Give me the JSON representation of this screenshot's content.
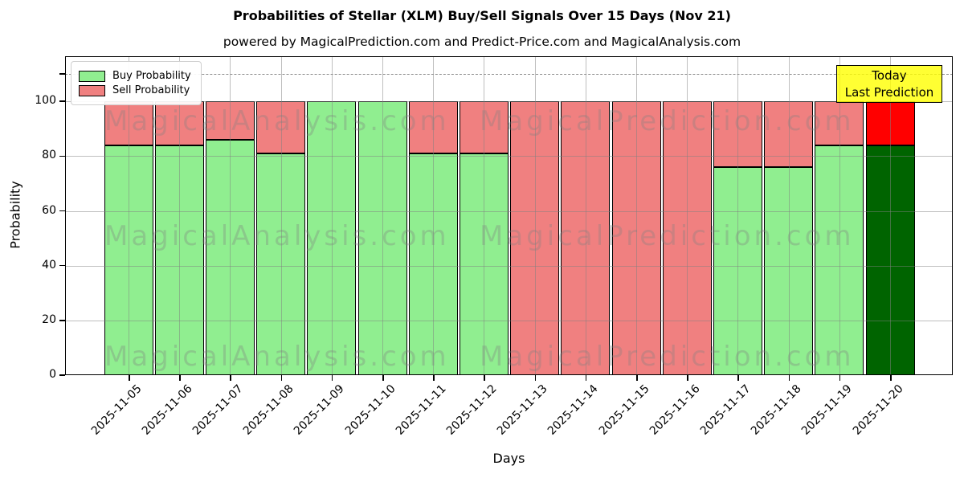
{
  "header": {
    "title": "Probabilities of Stellar (XLM) Buy/Sell Signals Over 15 Days (Nov 21)",
    "subtitle": "powered by MagicalPrediction.com and Predict-Price.com and MagicalAnalysis.com"
  },
  "axes": {
    "xlabel": "Days",
    "ylabel": "Probability"
  },
  "legend": [
    {
      "label": "Buy Probability",
      "color": "#90ee90"
    },
    {
      "label": "Sell Probability",
      "color": "#f08080"
    }
  ],
  "annotation": {
    "line1": "Today",
    "line2": "Last Prediction",
    "bg_color": "#ffff00"
  },
  "watermark": {
    "text_left": "MagicalAnalysis.com",
    "text_right": "MagicalPrediction.com"
  },
  "chart_data": {
    "type": "bar",
    "stacked": true,
    "title": "Probabilities of Stellar (XLM) Buy/Sell Signals Over 15 Days (Nov 21)",
    "xlabel": "Days",
    "ylabel": "Probability",
    "categories": [
      "2025-11-05",
      "2025-11-06",
      "2025-11-07",
      "2025-11-08",
      "2025-11-09",
      "2025-11-10",
      "2025-11-11",
      "2025-11-12",
      "2025-11-13",
      "2025-11-14",
      "2025-11-15",
      "2025-11-16",
      "2025-11-17",
      "2025-11-18",
      "2025-11-19",
      "2025-11-20"
    ],
    "series": [
      {
        "name": "Buy Probability",
        "color": "#90ee90",
        "values": [
          84,
          84,
          86,
          81,
          100,
          100,
          81,
          81,
          0,
          0,
          0,
          0,
          76,
          76,
          84,
          84
        ]
      },
      {
        "name": "Sell Probability",
        "color": "#f08080",
        "values": [
          16,
          16,
          14,
          19,
          0,
          0,
          19,
          19,
          100,
          100,
          100,
          100,
          24,
          24,
          16,
          16
        ]
      }
    ],
    "today_index": 15,
    "today_colors": {
      "buy": "#006400",
      "sell": "#ff0000"
    },
    "bar_edge_color": "#000000",
    "yticks": [
      0,
      20,
      40,
      60,
      80,
      100
    ],
    "extra_unlabeled_ytick": 110,
    "ylim": [
      0,
      116.5
    ],
    "dashed_line_y": 110,
    "grid": true,
    "legend_position": "upper left"
  }
}
